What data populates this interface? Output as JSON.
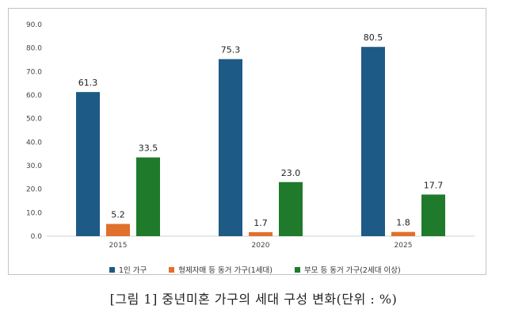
{
  "chart_data": {
    "type": "bar",
    "categories": [
      "2015",
      "2020",
      "2025"
    ],
    "series": [
      {
        "name": "1인 가구",
        "values": [
          61.3,
          75.3,
          80.5
        ],
        "color": "#1d5a85"
      },
      {
        "name": "형제자매 등 동거 가구(1세대)",
        "values": [
          5.2,
          1.7,
          1.8
        ],
        "color": "#e0702c"
      },
      {
        "name": "부모 등 동거 가구(2세대 이상)",
        "values": [
          33.5,
          23.0,
          17.7
        ],
        "color": "#1f7a2c"
      }
    ],
    "ylim": [
      0,
      90
    ],
    "yticks": [
      "0.0",
      "10.0",
      "20.0",
      "30.0",
      "40.0",
      "50.0",
      "60.0",
      "70.0",
      "80.0",
      "90.0"
    ],
    "grid": false,
    "legend_position": "bottom",
    "title": ""
  },
  "caption": "[그림 1] 중년미혼 가구의 세대 구성 변화(단위 : %)"
}
